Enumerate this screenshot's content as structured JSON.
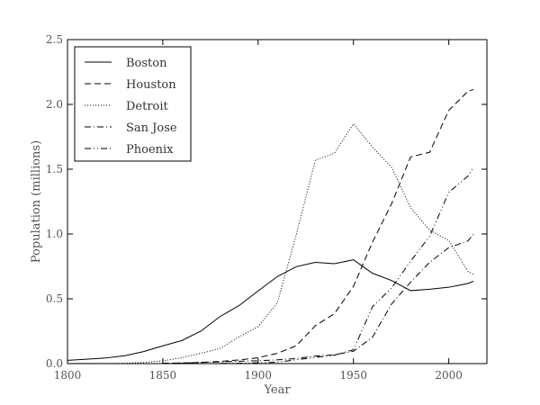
{
  "chart_data": {
    "type": "line",
    "title": "",
    "xlabel": "Year",
    "ylabel": "Population (millions)",
    "xlim": [
      1800,
      2020
    ],
    "ylim": [
      0,
      2.5
    ],
    "x_ticks": [
      1800,
      1850,
      1900,
      1950,
      2000
    ],
    "x_tick_labels": [
      "1800",
      "1850",
      "1900",
      "1950",
      "2000"
    ],
    "y_ticks": [
      0,
      0.5,
      1.0,
      1.5,
      2.0,
      2.5
    ],
    "y_tick_labels": [
      "0.0",
      "0.5",
      "1.0",
      "1.5",
      "2.0",
      "2.5"
    ],
    "grid": false,
    "legend_position": "top-left",
    "series": [
      {
        "name": "Boston",
        "style": "solid",
        "x": [
          1800,
          1810,
          1820,
          1830,
          1840,
          1850,
          1860,
          1870,
          1880,
          1890,
          1900,
          1910,
          1920,
          1930,
          1940,
          1950,
          1960,
          1970,
          1980,
          1990,
          2000,
          2010,
          2013
        ],
        "y": [
          0.025,
          0.034,
          0.043,
          0.061,
          0.093,
          0.137,
          0.178,
          0.251,
          0.363,
          0.448,
          0.561,
          0.671,
          0.748,
          0.781,
          0.771,
          0.801,
          0.697,
          0.641,
          0.563,
          0.574,
          0.589,
          0.618,
          0.636
        ]
      },
      {
        "name": "Houston",
        "style": "dashed",
        "x": [
          1850,
          1860,
          1870,
          1880,
          1890,
          1900,
          1910,
          1920,
          1930,
          1940,
          1950,
          1960,
          1970,
          1980,
          1990,
          2000,
          2010,
          2013
        ],
        "y": [
          0.002,
          0.005,
          0.009,
          0.017,
          0.028,
          0.045,
          0.079,
          0.138,
          0.292,
          0.385,
          0.596,
          0.938,
          1.233,
          1.595,
          1.631,
          1.954,
          2.1,
          2.115
        ]
      },
      {
        "name": "Detroit",
        "style": "dotted",
        "x": [
          1800,
          1810,
          1820,
          1830,
          1840,
          1850,
          1860,
          1870,
          1880,
          1890,
          1900,
          1910,
          1920,
          1930,
          1940,
          1950,
          1960,
          1970,
          1980,
          1990,
          2000,
          2010,
          2013
        ],
        "y": [
          0.001,
          0.002,
          0.001,
          0.002,
          0.009,
          0.021,
          0.046,
          0.08,
          0.116,
          0.206,
          0.286,
          0.466,
          0.994,
          1.569,
          1.623,
          1.85,
          1.67,
          1.514,
          1.203,
          1.028,
          0.951,
          0.714,
          0.689
        ]
      },
      {
        "name": "San Jose",
        "style": "dashdot",
        "x": [
          1850,
          1860,
          1870,
          1880,
          1890,
          1900,
          1910,
          1920,
          1930,
          1940,
          1950,
          1960,
          1970,
          1980,
          1990,
          2000,
          2010,
          2013
        ],
        "y": [
          0.003,
          0.004,
          0.009,
          0.013,
          0.018,
          0.022,
          0.029,
          0.039,
          0.058,
          0.068,
          0.095,
          0.204,
          0.46,
          0.629,
          0.782,
          0.895,
          0.946,
          0.998
        ]
      },
      {
        "name": "Phoenix",
        "style": "dashdotdot",
        "x": [
          1880,
          1890,
          1900,
          1910,
          1920,
          1930,
          1940,
          1950,
          1960,
          1970,
          1980,
          1990,
          2000,
          2010,
          2013
        ],
        "y": [
          0.002,
          0.003,
          0.006,
          0.011,
          0.029,
          0.048,
          0.065,
          0.107,
          0.439,
          0.584,
          0.79,
          0.983,
          1.321,
          1.446,
          1.513
        ]
      }
    ]
  },
  "line_styles": {
    "solid": "",
    "dashed": "7 4",
    "dotted": "1 2",
    "dashdot": "7 3 1 3",
    "dashdotdot": "7 3 1 3 1 3"
  }
}
